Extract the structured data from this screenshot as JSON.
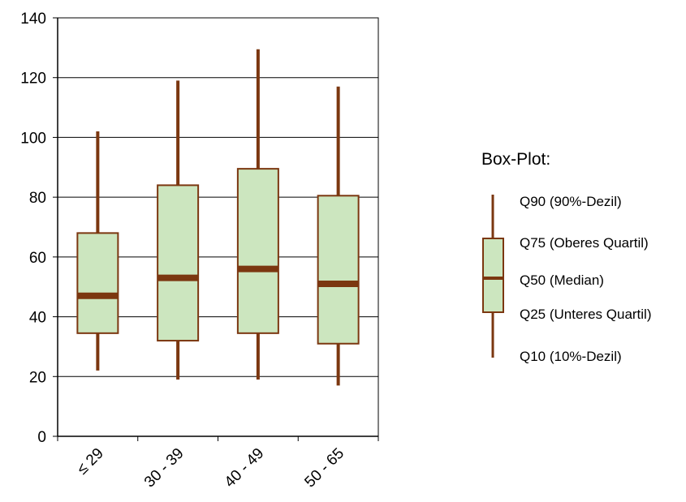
{
  "chart_data": {
    "type": "box",
    "categories": [
      "≤ 29",
      "30 - 39",
      "40 - 49",
      "50 - 65"
    ],
    "boxes": [
      {
        "category": "≤ 29",
        "q10": 22,
        "q25": 34.5,
        "q50": 47,
        "q75": 68,
        "q90": 102
      },
      {
        "category": "30 - 39",
        "q10": 19,
        "q25": 32,
        "q50": 53,
        "q75": 84,
        "q90": 119
      },
      {
        "category": "40 - 49",
        "q10": 19,
        "q25": 34.5,
        "q50": 56,
        "q75": 89.5,
        "q90": 129.5
      },
      {
        "category": "50 - 65",
        "q10": 17,
        "q25": 31,
        "q50": 51,
        "q75": 80.5,
        "q90": 117
      }
    ],
    "ylim": [
      0,
      140
    ],
    "yticks": [
      0,
      20,
      40,
      60,
      80,
      100,
      120,
      140
    ],
    "grid": true,
    "legend_position": "right",
    "colors": {
      "box_fill": "#cce6bf",
      "box_stroke": "#7b3710",
      "median": "#7b3710",
      "grid": "#000000"
    }
  },
  "legend": {
    "title": "Box-Plot:",
    "q90": "Q90 (90%-Dezil)",
    "q75": "Q75 (Oberes Quartil)",
    "q50": "Q50 (Median)",
    "q25": "Q25 (Unteres Quartil)",
    "q10": "Q10 (10%-Dezil)"
  }
}
